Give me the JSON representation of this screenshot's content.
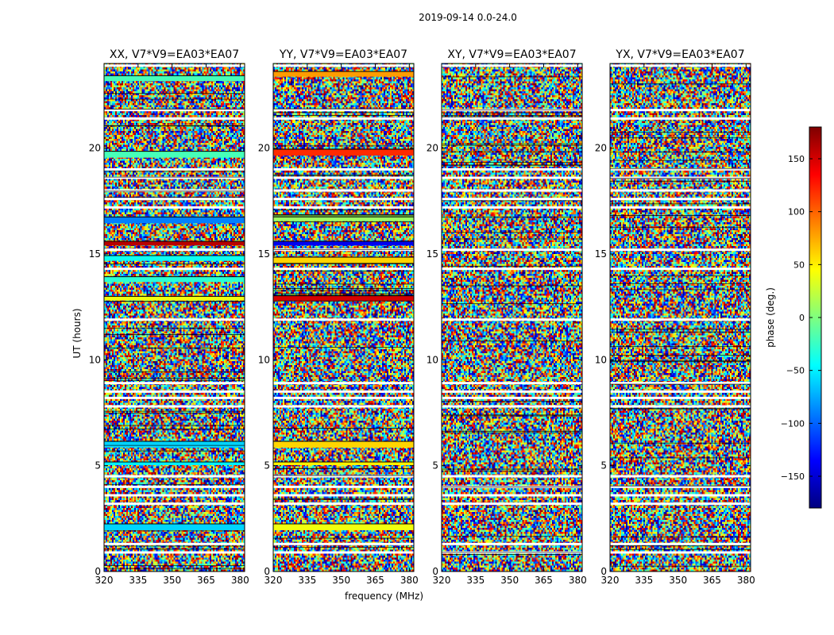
{
  "figure": {
    "suptitle": "2019-09-14 0.0-24.0"
  },
  "colorbar": {
    "label": "phase (deg.)",
    "range": [
      -180,
      180
    ],
    "ticks": [
      150,
      100,
      50,
      0,
      -50,
      -100,
      -150
    ],
    "tick_labels": [
      "150",
      "100",
      "50",
      "0",
      "−50",
      "−100",
      "−150"
    ],
    "stops": [
      "#00007f",
      "#0000ff",
      "#007fff",
      "#00ffff",
      "#7fff7f",
      "#ffff00",
      "#ff7f00",
      "#ff0000",
      "#7f0000"
    ]
  },
  "chart_data": [
    {
      "type": "heatmap",
      "title": "XX, V7*V9=EA03*EA07",
      "xlabel": "",
      "ylabel": "UT (hours)",
      "xlim": [
        320,
        382
      ],
      "ylim": [
        0,
        24
      ],
      "xticks": [
        320,
        335,
        350,
        365,
        380
      ],
      "yticks": [
        0,
        5,
        10,
        15,
        20
      ],
      "value": "phase (deg.)",
      "bands": [
        {
          "t": 23.3,
          "h": 0.25,
          "phase": -20
        },
        {
          "t": 19.7,
          "h": 0.3,
          "phase": -20
        },
        {
          "t": 16.6,
          "h": 0.3,
          "phase": -90
        },
        {
          "t": 15.5,
          "h": 0.2,
          "phase": 160
        },
        {
          "t": 14.8,
          "h": 0.25,
          "phase": -40
        },
        {
          "t": 13.8,
          "h": 0.25,
          "phase": -30
        },
        {
          "t": 12.9,
          "h": 0.2,
          "phase": 40
        },
        {
          "t": 6.0,
          "h": 0.3,
          "phase": -60
        },
        {
          "t": 5.1,
          "h": 0.15,
          "phase": -50
        },
        {
          "t": 2.1,
          "h": 0.3,
          "phase": -60
        }
      ],
      "flagged": [
        23.9,
        21.8,
        21.4,
        19.0,
        18.6,
        18.0,
        17.6,
        17.2,
        15.2,
        14.3,
        11.9,
        8.9,
        8.5,
        8.2,
        7.8,
        4.5,
        4.0,
        3.6,
        3.2,
        1.3,
        0.9
      ]
    },
    {
      "type": "heatmap",
      "title": "YY, V7*V9=EA03*EA07",
      "xlabel": "frequency (MHz)",
      "ylabel": "",
      "xlim": [
        320,
        382
      ],
      "ylim": [
        0,
        24
      ],
      "xticks": [
        320,
        335,
        350,
        365,
        380
      ],
      "yticks": [
        0,
        5,
        10,
        15,
        20
      ],
      "value": "phase (deg.)",
      "bands": [
        {
          "t": 23.5,
          "h": 0.25,
          "phase": 80
        },
        {
          "t": 19.8,
          "h": 0.3,
          "phase": 120
        },
        {
          "t": 16.7,
          "h": 0.3,
          "phase": 10
        },
        {
          "t": 15.5,
          "h": 0.2,
          "phase": -140
        },
        {
          "t": 14.7,
          "h": 0.3,
          "phase": 60
        },
        {
          "t": 12.9,
          "h": 0.25,
          "phase": 150
        },
        {
          "t": 6.0,
          "h": 0.3,
          "phase": 60
        },
        {
          "t": 5.1,
          "h": 0.15,
          "phase": 50
        },
        {
          "t": 2.1,
          "h": 0.3,
          "phase": 40
        }
      ],
      "flagged": [
        23.9,
        21.8,
        21.4,
        19.0,
        18.6,
        18.0,
        17.6,
        17.2,
        15.2,
        14.3,
        11.9,
        8.9,
        8.5,
        8.2,
        7.8,
        4.5,
        4.0,
        3.6,
        3.2,
        1.3,
        0.9
      ]
    },
    {
      "type": "heatmap",
      "title": "XY, V7*V9=EA03*EA07",
      "xlabel": "",
      "ylabel": "",
      "xlim": [
        320,
        382
      ],
      "ylim": [
        0,
        24
      ],
      "xticks": [
        320,
        335,
        350,
        365,
        380
      ],
      "yticks": [
        0,
        5,
        10,
        15,
        20
      ],
      "value": "phase (deg.)",
      "bands": [],
      "flagged": [
        23.9,
        21.8,
        21.4,
        19.0,
        18.6,
        18.0,
        17.6,
        17.2,
        15.2,
        14.3,
        11.9,
        8.9,
        8.5,
        8.2,
        7.8,
        4.5,
        4.0,
        3.6,
        3.2,
        1.3,
        0.9
      ]
    },
    {
      "type": "heatmap",
      "title": "YX, V7*V9=EA03*EA07",
      "xlabel": "",
      "ylabel": "",
      "xlim": [
        320,
        382
      ],
      "ylim": [
        0,
        24
      ],
      "xticks": [
        320,
        335,
        350,
        365,
        380
      ],
      "yticks": [
        0,
        5,
        10,
        15,
        20
      ],
      "value": "phase (deg.)",
      "bands": [],
      "flagged": [
        23.9,
        21.8,
        21.4,
        19.0,
        18.6,
        18.0,
        17.6,
        17.2,
        15.2,
        14.3,
        11.9,
        8.9,
        8.5,
        8.2,
        7.8,
        4.5,
        4.0,
        3.6,
        3.2,
        1.3,
        0.9
      ]
    }
  ]
}
